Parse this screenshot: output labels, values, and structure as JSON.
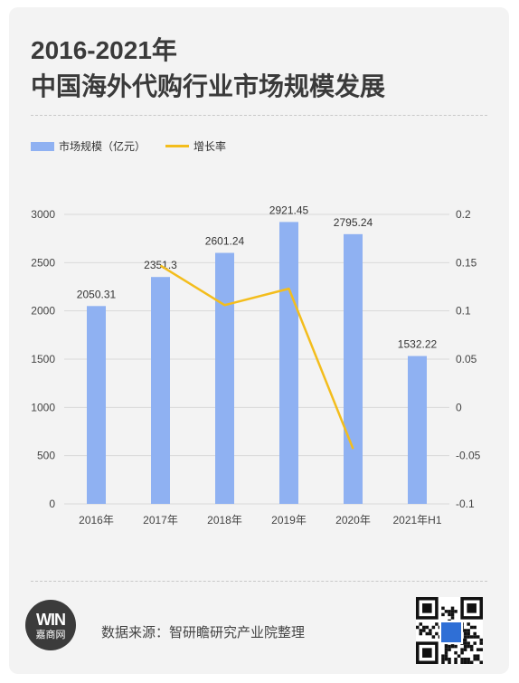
{
  "title_line1": "2016-2021年",
  "title_line2": "中国海外代购行业市场规模发展",
  "legend": {
    "bar_label": "市场规模（亿元）",
    "line_label": "增长率"
  },
  "colors": {
    "bar": "#8fb1f2",
    "line": "#f3bd1c",
    "grid": "#d9d9d9"
  },
  "chart_data": {
    "type": "bar",
    "categories": [
      "2016年",
      "2017年",
      "2018年",
      "2019年",
      "2020年",
      "2021年H1"
    ],
    "series": [
      {
        "name": "市场规模（亿元）",
        "type": "bar",
        "axis": "left",
        "values": [
          2050.31,
          2351.3,
          2601.24,
          2921.45,
          2795.24,
          1532.22
        ]
      },
      {
        "name": "增长率",
        "type": "line",
        "axis": "right",
        "values": [
          null,
          0.147,
          0.106,
          0.123,
          -0.043,
          null
        ]
      }
    ],
    "data_labels": [
      "2050.31",
      "2351.3",
      "2601.24",
      "2921.45",
      "2795.24",
      "1532.22"
    ],
    "y_left": {
      "min": 0,
      "max": 3000,
      "ticks": [
        "0",
        "500",
        "1000",
        "1500",
        "2000",
        "2500",
        "3000"
      ]
    },
    "y_right": {
      "min": -0.1,
      "max": 0.2,
      "ticks": [
        "-0.1",
        "-0.05",
        "0",
        "0.05",
        "0.1",
        "0.15",
        "0.2"
      ]
    },
    "grid": true,
    "legend_position": "top-left"
  },
  "footer": {
    "logo_top": "WIN",
    "logo_bottom": "嘉商网",
    "source": "数据来源：智研瞻研究产业院整理",
    "qr_icon": "qr-code-icon"
  }
}
